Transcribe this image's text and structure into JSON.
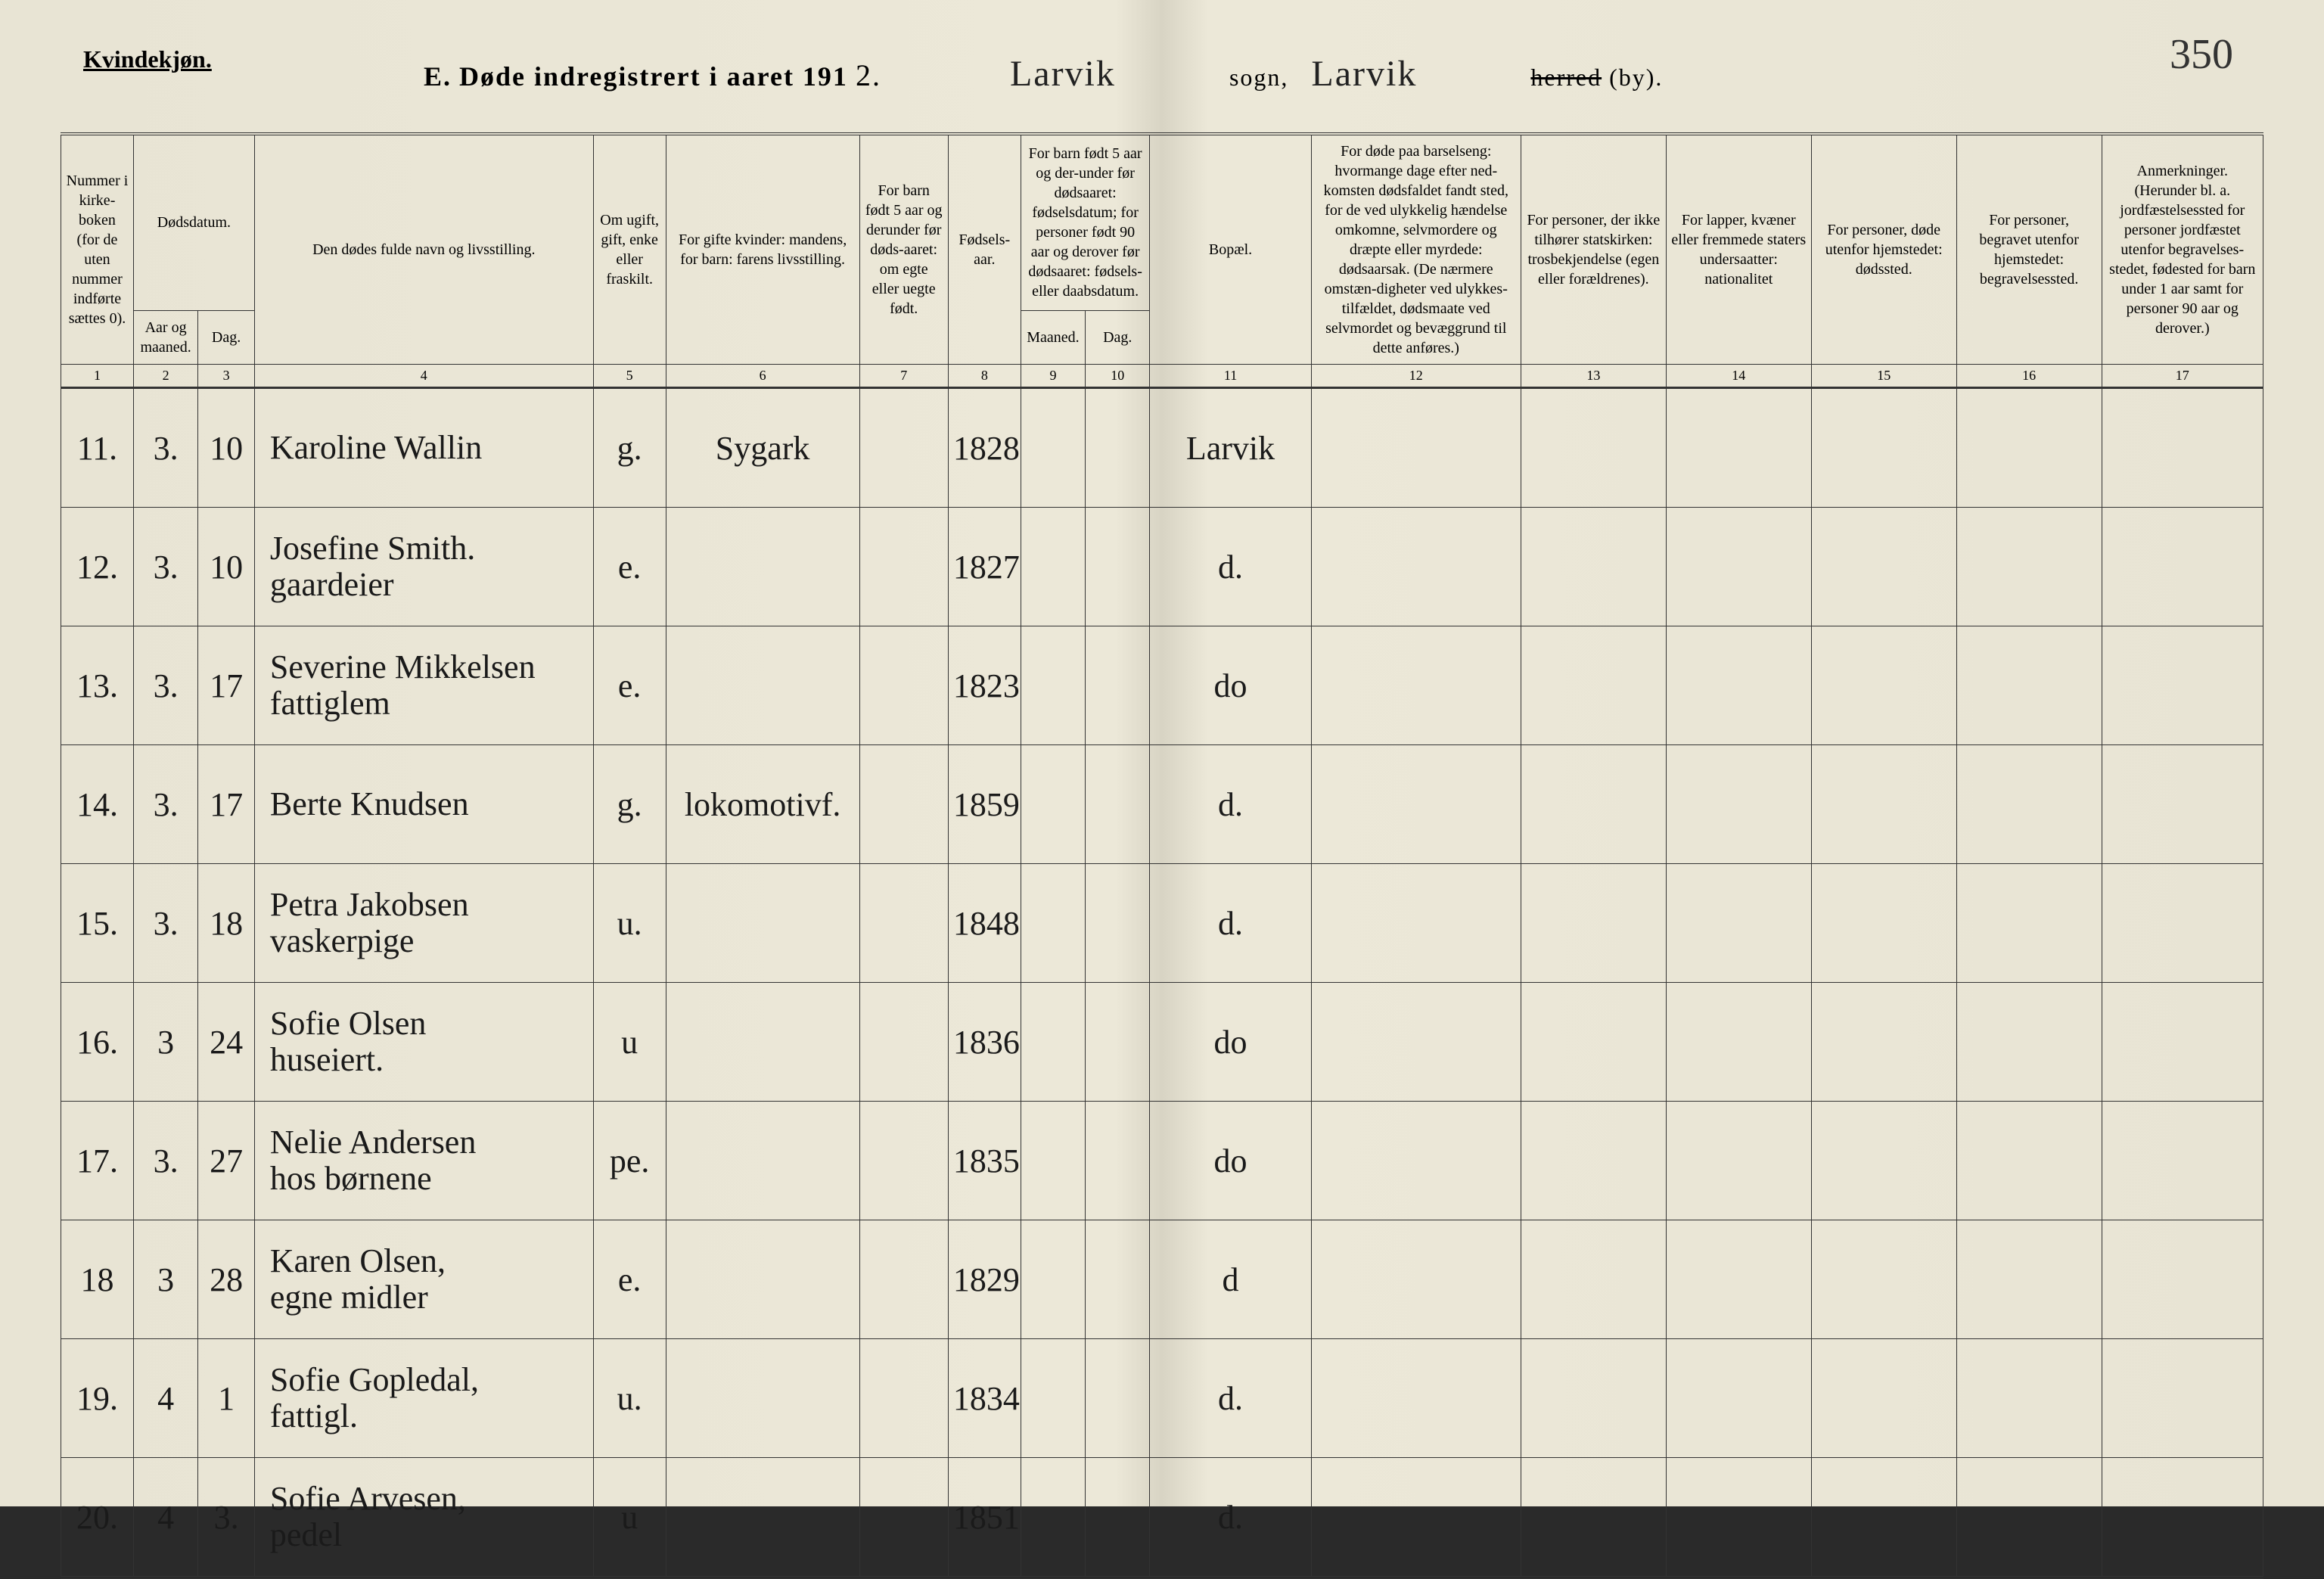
{
  "gender_label": "Kvindekjøn.",
  "page_number": "350",
  "title": {
    "section": "E.",
    "text": "Døde indregistrert i aaret 191",
    "year_suffix": "2.",
    "sogn_written": "Larvik",
    "sogn_label": "sogn,",
    "herred_written": "Larvik",
    "herred_label": "herred (by).",
    "herred_strike": "herred"
  },
  "headers": {
    "c1": "Nummer i kirke-boken (for de uten nummer indførte sættes 0).",
    "c2_3": "Dødsdatum.",
    "c2": "Aar og maaned.",
    "c3": "Dag.",
    "c4": "Den dødes fulde navn og livsstilling.",
    "c5": "Om ugift, gift, enke eller fraskilt.",
    "c6": "For gifte kvinder: mandens, for barn: farens livsstilling.",
    "c7": "For barn født 5 aar og derunder før døds-aaret: om egte eller uegte født.",
    "c8": "Fødsels-aar.",
    "c9_10": "For barn født 5 aar og der-under før dødsaaret: fødselsdatum; for personer født 90 aar og derover før dødsaaret: fødsels- eller daabsdatum.",
    "c9": "Maaned.",
    "c10": "Dag.",
    "c11": "Bopæl.",
    "c12": "For døde paa barselseng: hvormange dage efter ned-komsten dødsfaldet fandt sted, for de ved ulykkelig hændelse omkomne, selvmordere og dræpte eller myrdede: dødsaarsak. (De nærmere omstæn-digheter ved ulykkes-tilfældet, dødsmaate ved selvmordet og bevæggrund til dette anføres.)",
    "c13": "For personer, der ikke tilhører statskirken: trosbekjendelse (egen eller forældrenes).",
    "c14": "For lapper, kvæner eller fremmede staters undersaatter: nationalitet",
    "c15": "For personer, døde utenfor hjemstedet: dødssted.",
    "c16": "For personer, begravet utenfor hjemstedet: begravelsessted.",
    "c17": "Anmerkninger. (Herunder bl. a. jordfæstelsessted for personer jordfæstet utenfor begravelses-stedet, fødested for barn under 1 aar samt for personer 90 aar og derover.)"
  },
  "colnums": [
    "1",
    "2",
    "3",
    "4",
    "5",
    "6",
    "7",
    "8",
    "9",
    "10",
    "11",
    "12",
    "13",
    "14",
    "15",
    "16",
    "17"
  ],
  "rows": [
    {
      "num": "11.",
      "mnd": "3.",
      "dag": "10",
      "navn": "Karoline Wallin",
      "sub": "",
      "stand": "g.",
      "mand": "Sygark",
      "egte": "",
      "faar": "1828",
      "fm": "",
      "fd": "",
      "bopel": "Larvik"
    },
    {
      "num": "12.",
      "mnd": "3.",
      "dag": "10",
      "navn": "Josefine Smith.",
      "sub": "gaardeier",
      "stand": "e.",
      "mand": "",
      "egte": "",
      "faar": "1827",
      "fm": "",
      "fd": "",
      "bopel": "d."
    },
    {
      "num": "13.",
      "mnd": "3.",
      "dag": "17",
      "navn": "Severine Mikkelsen",
      "sub": "fattiglem",
      "stand": "e.",
      "mand": "",
      "egte": "",
      "faar": "1823",
      "fm": "",
      "fd": "",
      "bopel": "do"
    },
    {
      "num": "14.",
      "mnd": "3.",
      "dag": "17",
      "navn": "Berte Knudsen",
      "sub": "",
      "stand": "g.",
      "mand": "lokomotivf.",
      "egte": "",
      "faar": "1859",
      "fm": "",
      "fd": "",
      "bopel": "d."
    },
    {
      "num": "15.",
      "mnd": "3.",
      "dag": "18",
      "navn": "Petra Jakobsen",
      "sub": "vaskerpige",
      "stand": "u.",
      "mand": "",
      "egte": "",
      "faar": "1848",
      "fm": "",
      "fd": "",
      "bopel": "d."
    },
    {
      "num": "16.",
      "mnd": "3",
      "dag": "24",
      "navn": "Sofie Olsen",
      "sub": "huseiert.",
      "stand": "u",
      "mand": "",
      "egte": "",
      "faar": "1836",
      "fm": "",
      "fd": "",
      "bopel": "do"
    },
    {
      "num": "17.",
      "mnd": "3.",
      "dag": "27",
      "navn": "Nelie Andersen",
      "sub": "hos børnene",
      "stand": "pe.",
      "mand": "",
      "egte": "",
      "faar": "1835",
      "fm": "",
      "fd": "",
      "bopel": "do"
    },
    {
      "num": "18",
      "mnd": "3",
      "dag": "28",
      "navn": "Karen Olsen,",
      "sub": "egne midler",
      "stand": "e.",
      "mand": "",
      "egte": "",
      "faar": "1829",
      "fm": "",
      "fd": "",
      "bopel": "d"
    },
    {
      "num": "19.",
      "mnd": "4",
      "dag": "1",
      "navn": "Sofie Gopledal,",
      "sub": "fattigl.",
      "stand": "u.",
      "mand": "",
      "egte": "",
      "faar": "1834",
      "fm": "",
      "fd": "",
      "bopel": "d."
    },
    {
      "num": "20.",
      "mnd": "4",
      "dag": "3.",
      "navn": "Sofie Arvesen,",
      "sub": "pedel",
      "stand": "u",
      "mand": "",
      "egte": "",
      "faar": "1851",
      "fm": "",
      "fd": "",
      "bopel": "d."
    }
  ]
}
